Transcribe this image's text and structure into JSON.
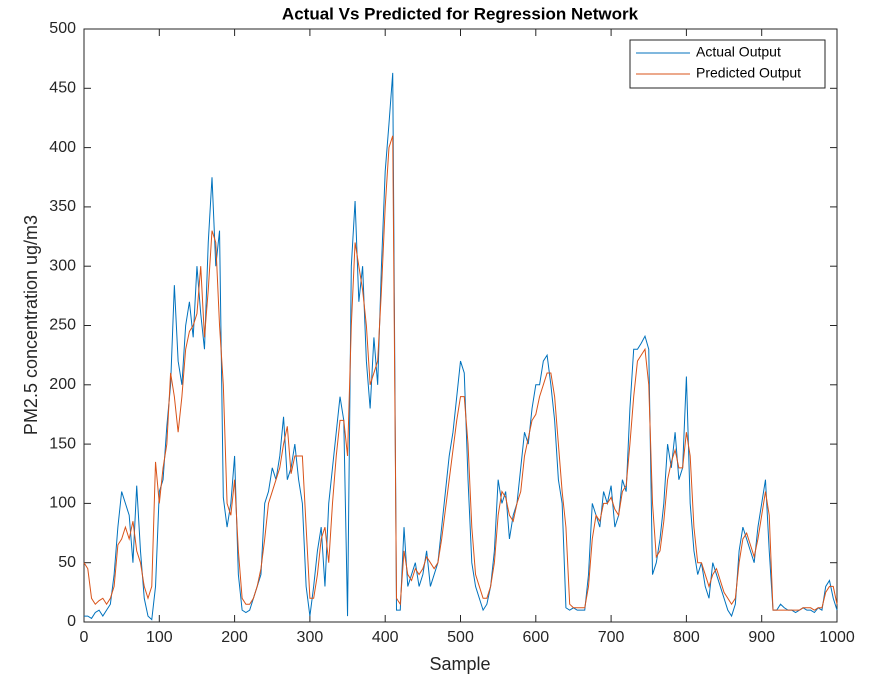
{
  "chart_data": {
    "type": "line",
    "title": "Actual Vs Predicted for Regression Network",
    "xlabel": "Sample",
    "ylabel": "PM2.5 concentration ug/m3",
    "x": [
      0,
      5,
      10,
      15,
      20,
      25,
      30,
      35,
      40,
      45,
      50,
      55,
      60,
      65,
      70,
      75,
      80,
      85,
      90,
      95,
      100,
      105,
      110,
      115,
      120,
      125,
      130,
      135,
      140,
      145,
      150,
      155,
      160,
      165,
      170,
      175,
      180,
      185,
      190,
      195,
      200,
      205,
      210,
      215,
      220,
      225,
      230,
      235,
      240,
      245,
      250,
      255,
      260,
      265,
      270,
      275,
      280,
      285,
      290,
      295,
      300,
      305,
      310,
      315,
      320,
      325,
      330,
      335,
      340,
      345,
      350,
      355,
      360,
      365,
      370,
      375,
      380,
      385,
      390,
      395,
      400,
      405,
      410,
      415,
      420,
      425,
      430,
      435,
      440,
      445,
      450,
      455,
      460,
      465,
      470,
      475,
      480,
      485,
      490,
      495,
      500,
      505,
      510,
      515,
      520,
      525,
      530,
      535,
      540,
      545,
      550,
      555,
      560,
      565,
      570,
      575,
      580,
      585,
      590,
      595,
      600,
      605,
      610,
      615,
      620,
      625,
      630,
      635,
      640,
      645,
      650,
      655,
      660,
      665,
      670,
      675,
      680,
      685,
      690,
      695,
      700,
      705,
      710,
      715,
      720,
      725,
      730,
      735,
      740,
      745,
      750,
      755,
      760,
      765,
      770,
      775,
      780,
      785,
      790,
      795,
      800,
      805,
      810,
      815,
      820,
      825,
      830,
      835,
      840,
      845,
      850,
      855,
      860,
      865,
      870,
      875,
      880,
      885,
      890,
      895,
      900,
      905,
      910,
      915,
      920,
      925,
      930,
      935,
      940,
      945,
      950,
      955,
      960,
      965,
      970,
      975,
      980,
      985,
      990,
      995,
      1000
    ],
    "series": [
      {
        "name": "Actual Output",
        "color": "#0072BD",
        "values": [
          5,
          5,
          3,
          8,
          10,
          5,
          10,
          15,
          40,
          80,
          110,
          100,
          90,
          50,
          115,
          60,
          20,
          5,
          2,
          30,
          110,
          120,
          165,
          200,
          284,
          220,
          200,
          250,
          270,
          240,
          300,
          260,
          230,
          320,
          375,
          300,
          330,
          105,
          80,
          100,
          140,
          40,
          10,
          8,
          10,
          20,
          30,
          40,
          100,
          110,
          130,
          120,
          140,
          173,
          120,
          130,
          150,
          120,
          100,
          30,
          5,
          30,
          60,
          80,
          30,
          100,
          130,
          160,
          190,
          170,
          5,
          300,
          355,
          270,
          300,
          220,
          180,
          240,
          200,
          300,
          380,
          420,
          463,
          10,
          10,
          80,
          30,
          40,
          50,
          30,
          40,
          60,
          30,
          40,
          50,
          80,
          110,
          140,
          160,
          190,
          220,
          210,
          120,
          50,
          30,
          20,
          10,
          15,
          30,
          60,
          120,
          100,
          110,
          70,
          90,
          100,
          130,
          160,
          150,
          180,
          200,
          200,
          220,
          225,
          200,
          170,
          120,
          100,
          12,
          10,
          12,
          10,
          10,
          10,
          40,
          100,
          90,
          80,
          110,
          100,
          115,
          80,
          90,
          120,
          110,
          180,
          230,
          230,
          235,
          241,
          230,
          40,
          50,
          70,
          100,
          150,
          130,
          160,
          120,
          130,
          207,
          100,
          60,
          40,
          50,
          30,
          20,
          50,
          40,
          30,
          20,
          10,
          5,
          15,
          60,
          80,
          70,
          60,
          50,
          80,
          100,
          120,
          60,
          10,
          10,
          15,
          12,
          10,
          10,
          8,
          10,
          12,
          10,
          10,
          8,
          12,
          10,
          30,
          35,
          20,
          10
        ]
      },
      {
        "name": "Predicted Output",
        "color": "#D95319",
        "values": [
          50,
          45,
          20,
          15,
          18,
          20,
          15,
          20,
          30,
          65,
          70,
          80,
          70,
          85,
          60,
          50,
          30,
          20,
          30,
          135,
          100,
          130,
          150,
          210,
          190,
          160,
          190,
          230,
          245,
          250,
          260,
          300,
          240,
          280,
          330,
          320,
          250,
          200,
          100,
          90,
          120,
          60,
          20,
          15,
          15,
          20,
          30,
          45,
          70,
          100,
          110,
          120,
          130,
          150,
          165,
          125,
          140,
          140,
          140,
          80,
          20,
          20,
          40,
          70,
          80,
          50,
          100,
          140,
          170,
          170,
          140,
          250,
          320,
          300,
          280,
          250,
          200,
          210,
          220,
          280,
          350,
          400,
          410,
          20,
          15,
          60,
          40,
          35,
          45,
          40,
          45,
          55,
          50,
          45,
          50,
          70,
          95,
          120,
          145,
          170,
          190,
          190,
          150,
          80,
          40,
          30,
          20,
          20,
          30,
          50,
          90,
          110,
          105,
          90,
          85,
          100,
          110,
          140,
          155,
          170,
          175,
          190,
          200,
          210,
          210,
          190,
          150,
          110,
          80,
          15,
          12,
          12,
          12,
          12,
          30,
          70,
          90,
          85,
          100,
          100,
          105,
          95,
          90,
          110,
          115,
          150,
          190,
          220,
          225,
          230,
          200,
          100,
          55,
          60,
          85,
          120,
          135,
          145,
          130,
          130,
          160,
          140,
          80,
          50,
          50,
          40,
          30,
          40,
          45,
          35,
          25,
          20,
          15,
          20,
          50,
          70,
          75,
          65,
          55,
          70,
          90,
          110,
          90,
          10,
          10,
          10,
          10,
          10,
          10,
          10,
          10,
          12,
          12,
          12,
          10,
          12,
          12,
          25,
          30,
          30,
          15
        ]
      }
    ],
    "xlim": [
      0,
      1000
    ],
    "ylim": [
      0,
      500
    ],
    "xticks": [
      0,
      100,
      200,
      300,
      400,
      500,
      600,
      700,
      800,
      900,
      1000
    ],
    "yticks": [
      0,
      50,
      100,
      150,
      200,
      250,
      300,
      350,
      400,
      450,
      500
    ],
    "legend": "upper right"
  }
}
